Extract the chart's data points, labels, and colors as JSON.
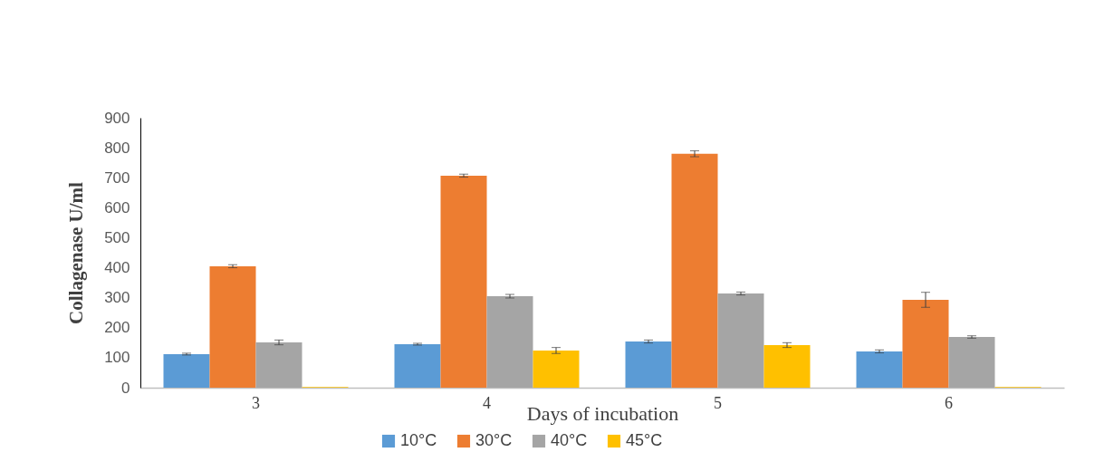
{
  "chart_data": {
    "type": "bar",
    "xlabel": "Days of incubation",
    "ylabel": "Collagenase U/ml",
    "categories": [
      "3",
      "4",
      "5",
      "6"
    ],
    "series": [
      {
        "name": "10°C",
        "color": "#5b9bd5",
        "values": [
          112,
          145,
          154,
          121
        ],
        "errors": [
          3,
          3,
          5,
          5
        ]
      },
      {
        "name": "30°C",
        "color": "#ed7d31",
        "values": [
          405,
          707,
          780,
          293
        ],
        "errors": [
          5,
          5,
          10,
          25
        ]
      },
      {
        "name": "40°C",
        "color": "#a5a5a5",
        "values": [
          151,
          305,
          314,
          169
        ],
        "errors": [
          8,
          6,
          5,
          4
        ]
      },
      {
        "name": "45°C",
        "color": "#ffc000",
        "values": [
          2,
          124,
          142,
          2
        ],
        "errors": [
          null,
          10,
          8,
          null
        ]
      }
    ],
    "ylim": [
      0,
      900
    ],
    "yticks": [
      0,
      100,
      200,
      300,
      400,
      500,
      600,
      700,
      800,
      900
    ],
    "grid": false,
    "legend": "bottom"
  }
}
